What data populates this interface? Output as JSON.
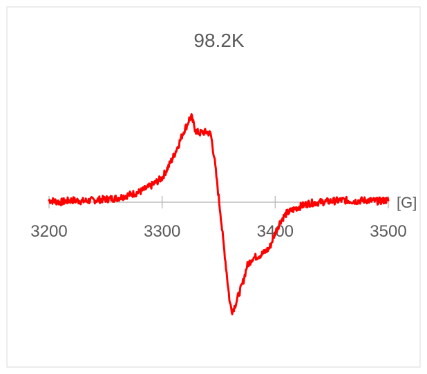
{
  "chart_data": {
    "type": "line",
    "title": "98.2K",
    "xlabel": "",
    "x_unit": "[G]",
    "ylabel": "",
    "xlim": [
      3200,
      3500
    ],
    "ylim": [
      -1.0,
      1.0
    ],
    "x_ticks": [
      3200,
      3300,
      3400,
      3500
    ],
    "x_tick_labels": [
      "3200",
      "3300",
      "3400",
      "3500"
    ],
    "grid": false,
    "legend": "none",
    "series": [
      {
        "color": "#ff0000",
        "x": [
          3200,
          3210,
          3220,
          3230,
          3240,
          3250,
          3260,
          3270,
          3280,
          3290,
          3300,
          3305,
          3310,
          3315,
          3318,
          3320,
          3322,
          3324,
          3326,
          3328,
          3330,
          3333,
          3336,
          3340,
          3343,
          3346,
          3348,
          3350,
          3352,
          3354,
          3356,
          3358,
          3360,
          3362,
          3364,
          3366,
          3368,
          3370,
          3372,
          3375,
          3380,
          3385,
          3390,
          3395,
          3400,
          3405,
          3410,
          3420,
          3430,
          3440,
          3450,
          3460,
          3470,
          3480,
          3490,
          3500
        ],
        "y": [
          0.02,
          0.0,
          0.02,
          0.01,
          0.02,
          0.03,
          0.04,
          0.07,
          0.1,
          0.16,
          0.24,
          0.34,
          0.45,
          0.58,
          0.67,
          0.72,
          0.76,
          0.82,
          0.84,
          0.76,
          0.7,
          0.68,
          0.69,
          0.69,
          0.67,
          0.45,
          0.25,
          0.05,
          -0.15,
          -0.38,
          -0.58,
          -0.8,
          -1.0,
          -1.07,
          -1.03,
          -0.97,
          -0.9,
          -0.84,
          -0.77,
          -0.63,
          -0.55,
          -0.53,
          -0.5,
          -0.45,
          -0.3,
          -0.18,
          -0.11,
          -0.05,
          -0.01,
          0.0,
          0.01,
          0.02,
          0.01,
          0.02,
          0.01,
          0.02
        ]
      }
    ]
  }
}
